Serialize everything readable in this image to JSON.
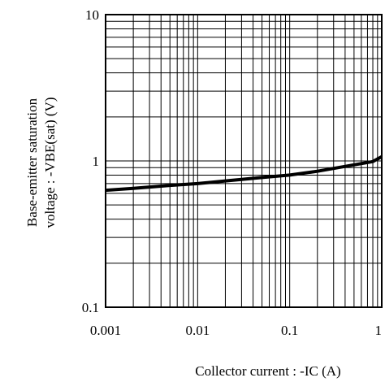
{
  "chart_data": {
    "type": "line",
    "x_scale": "log",
    "y_scale": "log",
    "xlim": [
      0.001,
      1
    ],
    "ylim": [
      0.1,
      10
    ],
    "x_ticks": [
      "0.001",
      "0.01",
      "0.1",
      "1"
    ],
    "y_ticks": [
      "0.1",
      "1",
      "10"
    ],
    "xlabel": "Collector current : -IC (A)",
    "ylabel_lines": [
      "Base-emitter saturation",
      "voltage : -VBE(sat) (V)"
    ],
    "grid": true,
    "series": [
      {
        "color": "#000000",
        "x": [
          0.001,
          0.002,
          0.005,
          0.01,
          0.02,
          0.05,
          0.1,
          0.2,
          0.5,
          0.8,
          1.0
        ],
        "y": [
          0.63,
          0.65,
          0.68,
          0.7,
          0.73,
          0.77,
          0.8,
          0.85,
          0.94,
          0.99,
          1.07
        ]
      }
    ]
  }
}
